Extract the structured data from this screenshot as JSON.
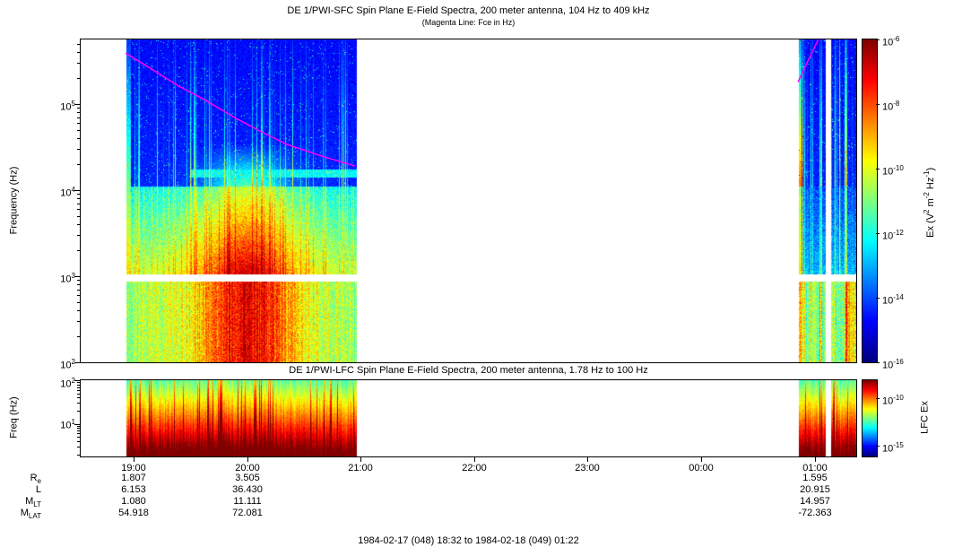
{
  "sfc": {
    "title": "DE 1/PWI-SFC  Spin Plane E-Field Spectra, 200 meter antenna, 104 Hz to 409 kHz",
    "subtitle": "(Magenta Line: Fce in Hz)",
    "ylabel": "Frequency (Hz)",
    "yticks": [
      {
        "base": "10",
        "exp": "5"
      },
      {
        "base": "10",
        "exp": "4"
      },
      {
        "base": "10",
        "exp": "3"
      },
      {
        "base": "10",
        "exp": "2"
      }
    ],
    "colorbar": {
      "ticks": [
        {
          "base": "10",
          "exp": "-6"
        },
        {
          "base": "10",
          "exp": "-8"
        },
        {
          "base": "10",
          "exp": "-10"
        },
        {
          "base": "10",
          "exp": "-12"
        },
        {
          "base": "10",
          "exp": "-14"
        },
        {
          "base": "10",
          "exp": "-16"
        }
      ],
      "label": {
        "s0": "Ex (V",
        "e0": "2",
        "s1": " m",
        "e1": "-2",
        "s2": " Hz",
        "e2": "-1",
        "s3": ")"
      }
    }
  },
  "lfc": {
    "title": "DE 1/PWI-LFC  Spin Plane E-Field Spectra, 200 meter antenna, 1.78 Hz to 100 Hz",
    "ylabel": "Freq (Hz)",
    "yticks": [
      {
        "base": "10",
        "exp": "2"
      },
      {
        "base": "10",
        "exp": "1"
      }
    ],
    "colorbar": {
      "ticks": [
        {
          "base": "10",
          "exp": "-10"
        },
        {
          "base": "10",
          "exp": "-15"
        }
      ],
      "label": "LFC Ex"
    }
  },
  "xaxis": {
    "ticks": [
      "19:00",
      "20:00",
      "21:00",
      "22:00",
      "23:00",
      "00:00",
      "01:00"
    ]
  },
  "ephemeris": {
    "rows": [
      {
        "label_base": "R",
        "label_sub": "e",
        "values": [
          "1.807",
          "3.505",
          "1.595"
        ]
      },
      {
        "label_base": "L",
        "label_sub": "",
        "values": [
          "6.153",
          "36.430",
          "20.915"
        ]
      },
      {
        "label_base": "M",
        "label_sub": "LT",
        "values": [
          "1.080",
          "11.111",
          "14.957"
        ]
      },
      {
        "label_base": "M",
        "label_sub": "LAT",
        "values": [
          "54.918",
          "72.081",
          "-72.363"
        ]
      }
    ]
  },
  "caption": "1984-02-17 (048) 18:32 to 1984-02-18 (049) 01:22",
  "chart_data": [
    {
      "type": "heatmap",
      "instrument": "DE 1/PWI-SFC",
      "title": "DE 1/PWI-SFC  Spin Plane E-Field Spectra, 200 meter antenna, 104 Hz to 409 kHz",
      "subtitle": "(Magenta Line: Fce in Hz)",
      "ylabel": "Frequency (Hz)",
      "y_scale": "log",
      "y_range_hz": [
        100,
        560000
      ],
      "x_range": [
        "1984-02-17 18:32",
        "1984-02-18 01:22"
      ],
      "x_ticks": [
        "19:00",
        "20:00",
        "21:00",
        "22:00",
        "23:00",
        "00:00",
        "01:00"
      ],
      "colorbar": {
        "label": "Ex (V^2 m^-2 Hz^-1)",
        "scale": "log",
        "min": 1e-16,
        "max": 1e-06,
        "colormap": "jet"
      },
      "data_intervals_frac": [
        [
          0.058,
          0.356
        ],
        [
          0.925,
          0.96
        ],
        [
          0.967,
          1.0
        ]
      ],
      "gap_band_log10hz": [
        2.945,
        3.03
      ],
      "fce_line_color": "#ff00ff",
      "fce_line_left_frac_hz": [
        [
          0.058,
          390000
        ],
        [
          0.09,
          260000
        ],
        [
          0.127,
          160000
        ],
        [
          0.16,
          112000
        ],
        [
          0.198,
          70000
        ],
        [
          0.232,
          48000
        ],
        [
          0.266,
          34000
        ],
        [
          0.31,
          25000
        ],
        [
          0.354,
          19000
        ]
      ],
      "fce_line_right_frac_hz": [
        [
          0.925,
          180000
        ],
        [
          0.94,
          350000
        ],
        [
          0.951,
          560000
        ]
      ]
    },
    {
      "type": "heatmap",
      "instrument": "DE 1/PWI-LFC",
      "title": "DE 1/PWI-LFC  Spin Plane E-Field Spectra, 200 meter antenna, 1.78 Hz to 100 Hz",
      "ylabel": "Freq (Hz)",
      "y_scale": "log",
      "y_range_hz": [
        1.78,
        100
      ],
      "colorbar": {
        "label": "LFC Ex",
        "scale": "log",
        "tick_values": [
          1e-10,
          1e-15
        ],
        "colormap": "jet"
      },
      "data_intervals_frac": [
        [
          0.058,
          0.356
        ],
        [
          0.925,
          0.96
        ],
        [
          0.967,
          1.0
        ]
      ]
    }
  ]
}
